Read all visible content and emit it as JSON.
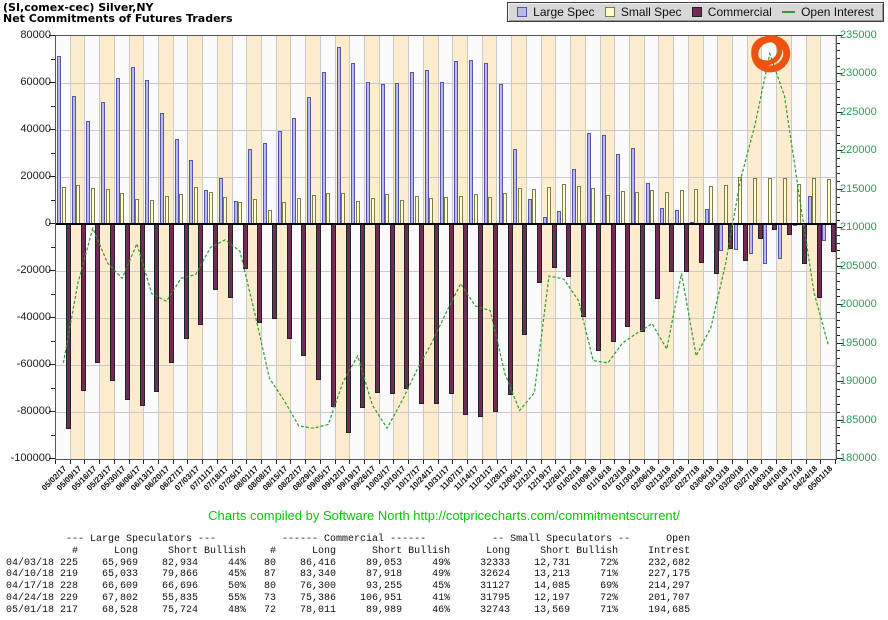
{
  "header": {
    "title_line1": "(SI,comex-cec) Silver,NY",
    "title_line2": "Net Commitments of Futures Traders"
  },
  "legend": {
    "items": [
      {
        "label": "Large Spec",
        "swatch": "box",
        "fill": "#b9b9ee",
        "border": "#5555aa"
      },
      {
        "label": "Small Spec",
        "swatch": "box",
        "fill": "#ffffcc",
        "border": "#7d7d4b"
      },
      {
        "label": "Commercial",
        "swatch": "box",
        "fill": "#6e2c57",
        "border": "#222222"
      },
      {
        "label": "Open Interest",
        "swatch": "line",
        "fill": "#2f9b2f",
        "border": "#2f9b2f"
      }
    ]
  },
  "chart_data": {
    "type": "bar+line",
    "x": [
      "05/02/17",
      "05/09/17",
      "05/16/17",
      "05/23/17",
      "05/30/17",
      "06/06/17",
      "06/13/17",
      "06/20/17",
      "06/27/17",
      "07/03/17",
      "07/11/17",
      "07/18/17",
      "07/25/17",
      "08/01/17",
      "08/08/17",
      "08/15/17",
      "08/22/17",
      "08/29/17",
      "09/05/17",
      "09/12/17",
      "09/19/17",
      "09/26/17",
      "10/03/17",
      "10/10/17",
      "10/17/17",
      "10/24/17",
      "10/31/17",
      "11/07/17",
      "11/14/17",
      "11/21/17",
      "11/28/17",
      "12/05/17",
      "12/12/17",
      "12/19/17",
      "12/26/17",
      "01/02/18",
      "01/09/18",
      "01/16/18",
      "01/23/18",
      "01/30/18",
      "02/06/18",
      "02/13/18",
      "02/20/18",
      "02/27/18",
      "03/06/18",
      "03/13/18",
      "03/20/18",
      "03/27/18",
      "04/03/18",
      "04/10/18",
      "04/17/18",
      "04/24/18",
      "05/01/18"
    ],
    "series": [
      {
        "name": "Large Spec",
        "color": "#b9b9ee",
        "border": "#5555aa",
        "values": [
          71500,
          54500,
          43800,
          52000,
          62000,
          66800,
          61300,
          47400,
          36000,
          27100,
          14300,
          19700,
          9800,
          31800,
          34300,
          39600,
          45000,
          54200,
          64800,
          75500,
          68400,
          60600,
          59700,
          59900,
          64700,
          65400,
          60600,
          69300,
          69600,
          68400,
          59400,
          32100,
          10500,
          3000,
          5500,
          23500,
          38900,
          37900,
          29900,
          32500,
          17500,
          7000,
          6000,
          1000,
          6200,
          -11500,
          -11100,
          -12900,
          -16965,
          -14833,
          -87,
          11967,
          -7196
        ]
      },
      {
        "name": "Small Spec",
        "color": "#ffffcc",
        "border": "#7d7d4b",
        "values": [
          15900,
          16600,
          15200,
          14700,
          13000,
          10500,
          10100,
          11900,
          12900,
          15700,
          13800,
          11600,
          9500,
          10500,
          6000,
          9500,
          11200,
          12300,
          13000,
          13300,
          9800,
          11200,
          12600,
          10100,
          12100,
          11200,
          11600,
          11900,
          12600,
          11600,
          13300,
          15200,
          14800,
          15700,
          16900,
          16200,
          15200,
          12300,
          14000,
          13500,
          14300,
          13600,
          14300,
          14700,
          16200,
          16600,
          19800,
          19400,
          19602,
          19411,
          17042,
          19598,
          19174
        ]
      },
      {
        "name": "Commercial",
        "color": "#6e2c57",
        "border": "#222222",
        "values": [
          -87400,
          -71100,
          -59000,
          -66700,
          -75000,
          -77300,
          -71400,
          -59300,
          -48900,
          -42800,
          -28100,
          -31300,
          -19300,
          -42300,
          -40300,
          -49100,
          -56200,
          -66500,
          -77800,
          -88800,
          -78200,
          -71800,
          -72300,
          -70000,
          -76800,
          -76600,
          -72200,
          -81200,
          -82200,
          -80000,
          -72700,
          -47300,
          -25300,
          -18700,
          -22400,
          -39700,
          -54100,
          -50200,
          -43900,
          -46000,
          -31800,
          -20600,
          -20300,
          -16500,
          -21100,
          -10500,
          -15700,
          -6500,
          -2637,
          -4578,
          -16955,
          -31565,
          -11978
        ]
      }
    ],
    "line_series": {
      "name": "Open Interest",
      "color": "#2f9b2f",
      "axis": "right",
      "values": [
        192500,
        203000,
        210000,
        205500,
        203500,
        208000,
        201500,
        200500,
        203500,
        204000,
        207500,
        208500,
        207000,
        199000,
        190500,
        187600,
        184300,
        184000,
        184500,
        190000,
        193400,
        187000,
        184000,
        187500,
        191500,
        195000,
        199000,
        202800,
        199900,
        199300,
        191100,
        186300,
        188600,
        203800,
        203400,
        200600,
        192800,
        192500,
        195100,
        196400,
        197600,
        194300,
        204100,
        193400,
        197100,
        205400,
        216200,
        223500,
        232682,
        227175,
        214297,
        201707,
        194685
      ]
    },
    "left_axis": {
      "min": -100000,
      "max": 80000,
      "major": 20000,
      "minor": 10000,
      "labels": [
        "80000",
        "60000",
        "40000",
        "20000",
        "0",
        "-20000",
        "-40000",
        "-60000",
        "-80000",
        "-100000"
      ]
    },
    "right_axis": {
      "min": 180000,
      "max": 235000,
      "major": 5000,
      "minor": 1000,
      "labels": [
        "235000",
        "230000",
        "225000",
        "220000",
        "215000",
        "210000",
        "205000",
        "200000",
        "195000",
        "190000",
        "185000",
        "180000"
      ]
    },
    "background": {
      "band_even": "#fbfbfb",
      "band_odd": "#fdeccd",
      "grid": "#c9c9c9"
    },
    "annotation": {
      "shape": "hand-drawn-circle",
      "color": "#ee5211",
      "marks": "open-interest-peak",
      "at_date": "04/03/18",
      "at_value": 232682
    }
  },
  "footer": {
    "credit": "Charts compiled by Software North  http://cotpricecharts.com/commitmentscurrent/"
  },
  "table": {
    "header1": "          --- Large Speculators ---           ------ Commercial ------           -- Small Speculators --      Open",
    "header2_fields": [
      "",
      "#",
      "Long",
      "Short",
      "Bullish",
      "#",
      "Long",
      "Short",
      "Bullish",
      "Long",
      "Short",
      "Bullish",
      "Intrest"
    ],
    "rows": [
      [
        "04/03/18",
        "225",
        "65,969",
        "82,934",
        "44%",
        "80",
        "86,416",
        "89,053",
        "49%",
        "32333",
        "12,731",
        "72%",
        "232,682"
      ],
      [
        "04/10/18",
        "219",
        "65,033",
        "79,866",
        "45%",
        "87",
        "83,340",
        "87,918",
        "49%",
        "32624",
        "13,213",
        "71%",
        "227,175"
      ],
      [
        "04/17/18",
        "228",
        "66,609",
        "66,696",
        "50%",
        "80",
        "76,300",
        "93,255",
        "45%",
        "31127",
        "14,085",
        "69%",
        "214,297"
      ],
      [
        "04/24/18",
        "229",
        "67,802",
        "55,835",
        "55%",
        "73",
        "75,386",
        "106,951",
        "41%",
        "31795",
        "12,197",
        "72%",
        "201,707"
      ],
      [
        "05/01/18",
        "217",
        "68,528",
        "75,724",
        "48%",
        "72",
        "78,011",
        "89,989",
        "46%",
        "32743",
        "13,569",
        "71%",
        "194,685"
      ]
    ]
  }
}
